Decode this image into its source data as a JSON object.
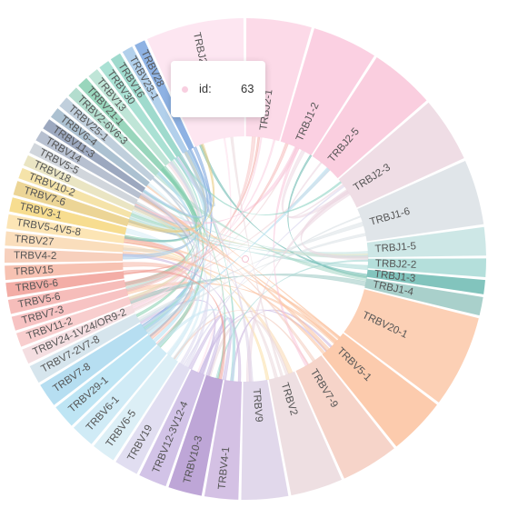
{
  "chart_data": {
    "type": "chord",
    "segments": [
      {
        "label": "TRBJ2-7",
        "value": 9,
        "color": "#fde2ee"
      },
      {
        "label": "TRBJ2-1",
        "value": 6,
        "color": "#fbd3e4"
      },
      {
        "label": "TRBJ1-2",
        "value": 6,
        "color": "#fac8dd"
      },
      {
        "label": "TRBJ2-5",
        "value": 6,
        "color": "#f9c6d9"
      },
      {
        "label": "TRBJ2-3",
        "value": 6,
        "color": "#ecd7e1"
      },
      {
        "label": "TRBJ1-6",
        "value": 6,
        "color": "#dbe1e5"
      },
      {
        "label": "TRBJ1-5",
        "value": 2.6,
        "color": "#c4e3e2"
      },
      {
        "label": "TRBJ2-2",
        "value": 1.7,
        "color": "#a7d9d5"
      },
      {
        "label": "TRBJ1-3",
        "value": 1.3,
        "color": "#6cbab1"
      },
      {
        "label": "TRBJ1-4",
        "value": 1.7,
        "color": "#9ac8c2"
      },
      {
        "label": "TRBV20-1",
        "value": 8.5,
        "color": "#fcc8a8"
      },
      {
        "label": "TRBV5-1",
        "value": 5.3,
        "color": "#fbc29f"
      },
      {
        "label": "TRBV7-9",
        "value": 5.3,
        "color": "#f4cdbf"
      },
      {
        "label": "TRBV2",
        "value": 4.8,
        "color": "#ebd9dd"
      },
      {
        "label": "TRBV9",
        "value": 4.3,
        "color": "#dcd1e8"
      },
      {
        "label": "TRBV4-1",
        "value": 3.1,
        "color": "#ccb6df"
      },
      {
        "label": "TRBV10-3",
        "value": 3.1,
        "color": "#b397d0"
      },
      {
        "label": "TRBV12-3V12-4",
        "value": 2.6,
        "color": "#cab9e3"
      },
      {
        "label": "TRBV19",
        "value": 2.2,
        "color": "#dcd8ef"
      },
      {
        "label": "TRBV6-5",
        "value": 2.2,
        "color": "#d6ecf5"
      },
      {
        "label": "TRBV6-1",
        "value": 2.2,
        "color": "#c8e7f4"
      },
      {
        "label": "TRBV29-1",
        "value": 2.2,
        "color": "#b3e0f2"
      },
      {
        "label": "TRBV7-8",
        "value": 2.2,
        "color": "#a9d8ee"
      },
      {
        "label": "TRBV7-2V7-8",
        "value": 1.7,
        "color": "#cfe0ea"
      },
      {
        "label": "TRBV24-1V24/OR9-2",
        "value": 1.4,
        "color": "#f2d8dc"
      },
      {
        "label": "TRBV11-2",
        "value": 1.3,
        "color": "#f7c6c6"
      },
      {
        "label": "TRBV7-3",
        "value": 1.3,
        "color": "#f6b9b9"
      },
      {
        "label": "TRBV5-6",
        "value": 1.3,
        "color": "#f4b2ae"
      },
      {
        "label": "TRBV6-6",
        "value": 1.3,
        "color": "#f19f96"
      },
      {
        "label": "TRBV15",
        "value": 1.3,
        "color": "#f6b7a5"
      },
      {
        "label": "TRBV4-2",
        "value": 1.3,
        "color": "#f6c8b1"
      },
      {
        "label": "TRBV27",
        "value": 1.3,
        "color": "#f9d8b0"
      },
      {
        "label": "TRBV5-4V5-8",
        "value": 1.3,
        "color": "#fbe0a8"
      },
      {
        "label": "TRBV3-1",
        "value": 1.3,
        "color": "#f6d77d"
      },
      {
        "label": "TRBV7-6",
        "value": 1.3,
        "color": "#e9ce84"
      },
      {
        "label": "TRBV10-2",
        "value": 1.0,
        "color": "#f3de9a"
      },
      {
        "label": "TRBV18",
        "value": 1.0,
        "color": "#e6e0b8"
      },
      {
        "label": "TRBV5-5",
        "value": 1.0,
        "color": "#c9cfd6"
      },
      {
        "label": "TRBV14",
        "value": 1.0,
        "color": "#aab5c8"
      },
      {
        "label": "TRBV11-3",
        "value": 1.0,
        "color": "#8b99b4"
      },
      {
        "label": "TRBV6-4",
        "value": 1.0,
        "color": "#9db6c9"
      },
      {
        "label": "TRBV25-1",
        "value": 1.0,
        "color": "#b5c7d6"
      },
      {
        "label": "TRBV2-6V6-3",
        "value": 1.0,
        "color": "#a6d7c6"
      },
      {
        "label": "TRBV21-1",
        "value": 1.0,
        "color": "#87cfb0"
      },
      {
        "label": "TRBV13",
        "value": 1.0,
        "color": "#b4e0d0"
      },
      {
        "label": "TRBV30",
        "value": 1.0,
        "color": "#9bdccc"
      },
      {
        "label": "TRBV16",
        "value": 1.0,
        "color": "#8ed4c4"
      },
      {
        "label": "TRBV23-1",
        "value": 1.0,
        "color": "#a4c8e8"
      },
      {
        "label": "TRBV28",
        "value": 1.0,
        "color": "#7aa4de"
      }
    ]
  },
  "tooltip": {
    "key": "id:",
    "value": "63",
    "dot_color": "#f8cfe0"
  }
}
